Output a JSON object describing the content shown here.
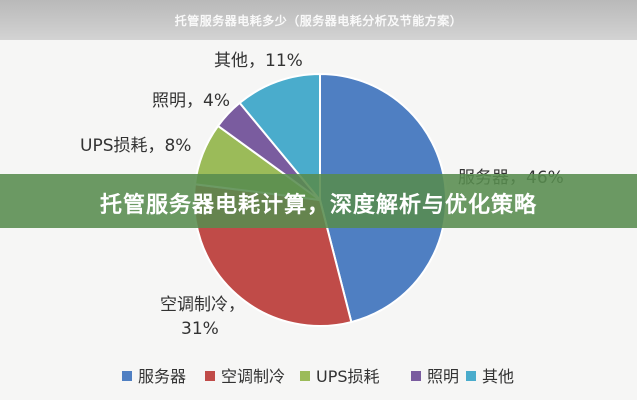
{
  "banner": {
    "text": "托管服务器电耗多少（服务器电耗分析及节能方案）"
  },
  "overlay": {
    "title": "托管服务器电耗计算，深度解析与优化策略"
  },
  "chart_data": {
    "type": "pie",
    "title": "",
    "slices": [
      {
        "name": "服务器",
        "value": 46,
        "color": "#4f7fc2",
        "label": "服务器，46%"
      },
      {
        "name": "空调制冷",
        "value": 31,
        "color": "#c04b48",
        "label_lines": [
          "空调制冷，",
          "31%"
        ]
      },
      {
        "name": "UPS损耗",
        "value": 8,
        "color": "#9bbb59",
        "label": "UPS损耗，8%"
      },
      {
        "name": "照明",
        "value": 4,
        "color": "#7a5c9f",
        "label": "照明，4%"
      },
      {
        "name": "其他",
        "value": 11,
        "color": "#4aaccc",
        "label": "其他，11%"
      }
    ],
    "legend": {
      "placement": "bottom",
      "entries": [
        "服务器",
        "空调制冷",
        "UPS损耗",
        "照明",
        "其他"
      ]
    }
  }
}
